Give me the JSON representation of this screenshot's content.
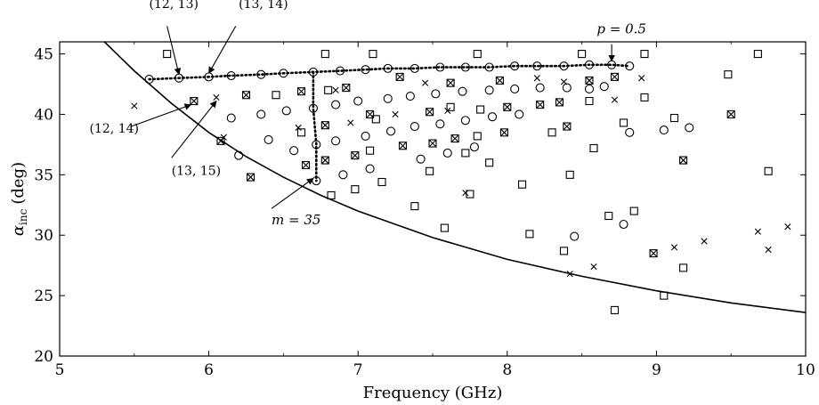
{
  "chart_data": {
    "type": "scatter",
    "xlabel": "Frequency (GHz)",
    "ylabel_main": "α",
    "ylabel_sub": "inc",
    "ylabel_unit": "(deg)",
    "xlim": [
      5,
      10
    ],
    "ylim": [
      20,
      46
    ],
    "xticks": [
      5,
      6,
      7,
      8,
      9,
      10
    ],
    "yticks": [
      20,
      25,
      30,
      35,
      40,
      45
    ],
    "grid": false,
    "legend": "none",
    "cutoff_curve": {
      "points": [
        [
          5.3,
          46
        ],
        [
          5.5,
          43.6
        ],
        [
          5.75,
          40.9
        ],
        [
          6,
          38.5
        ],
        [
          6.25,
          36.5
        ],
        [
          6.5,
          34.8
        ],
        [
          6.75,
          33.3
        ],
        [
          7,
          32
        ],
        [
          7.5,
          29.8
        ],
        [
          8,
          28
        ],
        [
          8.5,
          26.6
        ],
        [
          9,
          25.4
        ],
        [
          9.5,
          24.4
        ],
        [
          10,
          23.6
        ]
      ]
    },
    "series": [
      {
        "marker": "circle",
        "points": [
          [
            5.6,
            42.9
          ],
          [
            5.8,
            43.0
          ],
          [
            6.0,
            43.1
          ],
          [
            6.15,
            43.2
          ],
          [
            6.35,
            43.3
          ],
          [
            6.5,
            43.4
          ],
          [
            6.7,
            43.5
          ],
          [
            6.88,
            43.6
          ],
          [
            7.05,
            43.7
          ],
          [
            7.2,
            43.8
          ],
          [
            7.38,
            43.8
          ],
          [
            7.55,
            43.9
          ],
          [
            7.72,
            43.9
          ],
          [
            7.88,
            43.9
          ],
          [
            8.05,
            44.0
          ],
          [
            8.2,
            44.0
          ],
          [
            8.38,
            44.0
          ],
          [
            8.55,
            44.1
          ],
          [
            8.7,
            44.1
          ],
          [
            8.82,
            44.0
          ],
          [
            6.15,
            39.7
          ],
          [
            6.35,
            40.0
          ],
          [
            6.52,
            40.3
          ],
          [
            6.7,
            40.5
          ],
          [
            6.2,
            36.6
          ],
          [
            6.4,
            37.9
          ],
          [
            6.57,
            37.0
          ],
          [
            6.72,
            37.5
          ],
          [
            6.72,
            34.5
          ],
          [
            6.85,
            40.8
          ],
          [
            6.85,
            37.8
          ],
          [
            6.9,
            35.0
          ],
          [
            7.0,
            41.1
          ],
          [
            7.05,
            38.2
          ],
          [
            7.08,
            35.5
          ],
          [
            7.2,
            41.3
          ],
          [
            7.22,
            38.6
          ],
          [
            7.35,
            41.5
          ],
          [
            7.38,
            39.0
          ],
          [
            7.42,
            36.3
          ],
          [
            7.52,
            41.7
          ],
          [
            7.55,
            39.2
          ],
          [
            7.6,
            36.8
          ],
          [
            7.7,
            41.9
          ],
          [
            7.72,
            39.5
          ],
          [
            7.78,
            37.3
          ],
          [
            7.88,
            42.0
          ],
          [
            7.9,
            39.8
          ],
          [
            8.05,
            42.1
          ],
          [
            8.08,
            40.0
          ],
          [
            8.22,
            42.2
          ],
          [
            8.4,
            42.2
          ],
          [
            8.55,
            42.1
          ],
          [
            8.65,
            42.3
          ],
          [
            8.82,
            38.5
          ],
          [
            9.05,
            38.7
          ],
          [
            9.22,
            38.9
          ],
          [
            8.45,
            29.9
          ],
          [
            8.78,
            30.9
          ]
        ]
      },
      {
        "marker": "square",
        "points": [
          [
            5.72,
            45.0
          ],
          [
            6.78,
            45.0
          ],
          [
            7.1,
            45.0
          ],
          [
            7.8,
            45.0
          ],
          [
            8.5,
            45.0
          ],
          [
            8.92,
            45.0
          ],
          [
            9.68,
            45.0
          ],
          [
            6.62,
            38.5
          ],
          [
            6.45,
            41.6
          ],
          [
            6.8,
            42.0
          ],
          [
            7.08,
            37.0
          ],
          [
            7.16,
            34.4
          ],
          [
            6.98,
            33.8
          ],
          [
            6.82,
            33.3
          ],
          [
            7.38,
            32.4
          ],
          [
            7.12,
            39.6
          ],
          [
            7.48,
            35.3
          ],
          [
            7.62,
            40.6
          ],
          [
            7.82,
            40.4
          ],
          [
            7.8,
            38.2
          ],
          [
            7.72,
            36.8
          ],
          [
            7.75,
            33.4
          ],
          [
            7.88,
            36.0
          ],
          [
            8.1,
            34.2
          ],
          [
            8.15,
            30.1
          ],
          [
            7.58,
            30.6
          ],
          [
            8.3,
            38.5
          ],
          [
            8.42,
            35.0
          ],
          [
            8.55,
            41.1
          ],
          [
            8.58,
            37.2
          ],
          [
            8.68,
            31.6
          ],
          [
            8.78,
            39.3
          ],
          [
            8.85,
            32.0
          ],
          [
            8.92,
            41.4
          ],
          [
            9.12,
            39.7
          ],
          [
            9.18,
            27.3
          ],
          [
            9.05,
            25.0
          ],
          [
            8.38,
            28.7
          ],
          [
            8.72,
            23.8
          ],
          [
            9.48,
            43.3
          ],
          [
            9.75,
            35.3
          ]
        ]
      },
      {
        "marker": "boxed-cross",
        "points": [
          [
            5.9,
            41.1
          ],
          [
            6.08,
            37.8
          ],
          [
            6.25,
            41.6
          ],
          [
            6.28,
            34.8
          ],
          [
            6.62,
            41.9
          ],
          [
            6.65,
            35.8
          ],
          [
            6.78,
            39.1
          ],
          [
            6.78,
            36.2
          ],
          [
            6.92,
            42.2
          ],
          [
            6.98,
            36.6
          ],
          [
            7.08,
            40.0
          ],
          [
            7.28,
            43.1
          ],
          [
            7.3,
            37.4
          ],
          [
            7.48,
            40.2
          ],
          [
            7.5,
            37.6
          ],
          [
            7.62,
            42.6
          ],
          [
            7.65,
            38.0
          ],
          [
            7.95,
            42.8
          ],
          [
            8.0,
            40.6
          ],
          [
            7.98,
            38.5
          ],
          [
            8.22,
            40.8
          ],
          [
            8.35,
            41.0
          ],
          [
            8.4,
            39.0
          ],
          [
            8.55,
            42.8
          ],
          [
            8.72,
            43.1
          ],
          [
            8.98,
            28.5
          ],
          [
            9.18,
            36.2
          ],
          [
            9.5,
            40.0
          ]
        ]
      },
      {
        "marker": "x",
        "points": [
          [
            5.5,
            40.7
          ],
          [
            6.05,
            41.4
          ],
          [
            6.1,
            38.1
          ],
          [
            6.6,
            38.9
          ],
          [
            6.85,
            42.0
          ],
          [
            6.95,
            39.3
          ],
          [
            7.25,
            40.0
          ],
          [
            7.45,
            42.6
          ],
          [
            7.6,
            40.3
          ],
          [
            7.72,
            33.5
          ],
          [
            8.2,
            43.0
          ],
          [
            8.42,
            26.8
          ],
          [
            8.58,
            27.4
          ],
          [
            8.72,
            41.2
          ],
          [
            8.9,
            43.0
          ],
          [
            9.12,
            29.0
          ],
          [
            9.32,
            29.5
          ],
          [
            9.68,
            30.3
          ],
          [
            9.75,
            28.8
          ],
          [
            9.88,
            30.7
          ],
          [
            8.38,
            42.7
          ]
        ]
      }
    ],
    "paths": {
      "p_row": [
        [
          5.6,
          42.9
        ],
        [
          5.8,
          43.0
        ],
        [
          6.0,
          43.1
        ],
        [
          6.15,
          43.2
        ],
        [
          6.35,
          43.3
        ],
        [
          6.5,
          43.4
        ],
        [
          6.7,
          43.5
        ],
        [
          6.88,
          43.6
        ],
        [
          7.05,
          43.7
        ],
        [
          7.2,
          43.8
        ],
        [
          7.38,
          43.8
        ],
        [
          7.55,
          43.9
        ],
        [
          7.72,
          43.9
        ],
        [
          7.88,
          43.9
        ],
        [
          8.05,
          44.0
        ],
        [
          8.2,
          44.0
        ],
        [
          8.38,
          44.0
        ],
        [
          8.55,
          44.1
        ],
        [
          8.7,
          44.1
        ],
        [
          8.82,
          44.0
        ]
      ],
      "m_col": [
        [
          6.7,
          43.5
        ],
        [
          6.7,
          40.5
        ],
        [
          6.72,
          37.5
        ],
        [
          6.72,
          34.5
        ]
      ]
    },
    "annotations": [
      {
        "text": "(12, 13)",
        "style": "normal",
        "text_pos": [
          5.6,
          48.8
        ],
        "arrow_from": [
          5.72,
          47.3
        ],
        "arrow_to": [
          5.8,
          43.3
        ]
      },
      {
        "text": "(13, 14)",
        "style": "normal",
        "text_pos": [
          6.2,
          48.8
        ],
        "arrow_from": [
          6.18,
          47.3
        ],
        "arrow_to": [
          6.0,
          43.4
        ]
      },
      {
        "text": "p = 0.5",
        "style": "italic",
        "text_pos": [
          8.6,
          46.7
        ],
        "arrow_from": [
          8.7,
          45.8
        ],
        "arrow_to": [
          8.7,
          44.4
        ]
      },
      {
        "text": "(12, 14)",
        "style": "normal",
        "text_pos": [
          5.2,
          38.5
        ],
        "arrow_from": [
          5.48,
          39.0
        ],
        "arrow_to": [
          5.88,
          40.8
        ]
      },
      {
        "text": "(13, 15)",
        "style": "normal",
        "text_pos": [
          5.75,
          35.0
        ],
        "arrow_from": [
          5.75,
          36.4
        ],
        "arrow_to": [
          6.05,
          41.1
        ]
      },
      {
        "text": "m = 35",
        "style": "italic",
        "text_pos": [
          6.42,
          30.9
        ],
        "arrow_from": [
          6.42,
          32.2
        ],
        "arrow_to": [
          6.7,
          34.7
        ]
      }
    ]
  }
}
